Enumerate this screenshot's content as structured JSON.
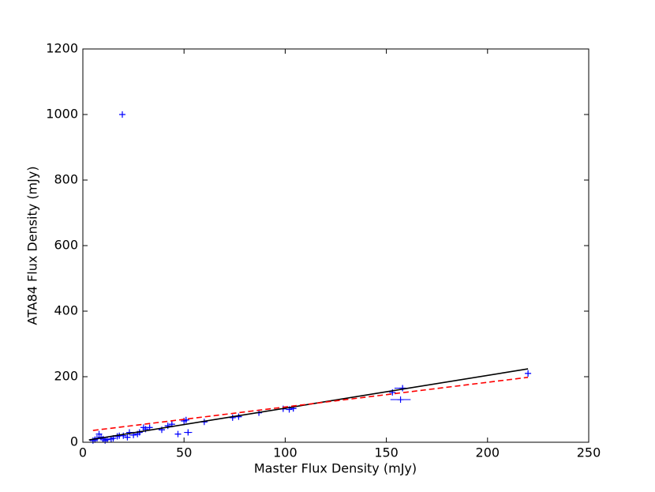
{
  "chart_data": {
    "type": "scatter",
    "xlabel": "Master Flux Density (mJy)",
    "ylabel": "ATA84 Flux Density (mJy)",
    "xlim": [
      0,
      250
    ],
    "ylim": [
      0,
      1200
    ],
    "xticks": [
      0,
      50,
      100,
      150,
      200,
      250
    ],
    "yticks": [
      0,
      200,
      400,
      600,
      800,
      1000,
      1200
    ],
    "series": [
      {
        "type": "scatter",
        "color": "#0000ff",
        "x": [
          19.5,
          220,
          157,
          158,
          153,
          104,
          99,
          102,
          87,
          77,
          74,
          60,
          51,
          50,
          52,
          47,
          44,
          42,
          39,
          33,
          31,
          30,
          28,
          27,
          25,
          23,
          22,
          20,
          18,
          17,
          15,
          14,
          12,
          10,
          8,
          9,
          7,
          6,
          5,
          11
        ],
        "values": [
          1000,
          210,
          130,
          165,
          152,
          103,
          102,
          100,
          90,
          78,
          75,
          62,
          68,
          65,
          30,
          25,
          55,
          50,
          38,
          45,
          40,
          45,
          30,
          25,
          22,
          30,
          15,
          20,
          20,
          18,
          12,
          10,
          8,
          10,
          25,
          15,
          12,
          8,
          5,
          5
        ],
        "xerr": [
          1.5,
          1.5,
          5,
          4,
          1.5,
          1.5,
          1.5,
          1.5,
          1.5,
          1.5,
          1.5,
          1.5,
          1.5,
          1.5,
          2,
          1.5,
          1.5,
          1.5,
          1.5,
          1.5,
          1.5,
          1.5,
          1.5,
          1.5,
          1.5,
          1.5,
          1.5,
          1.5,
          1.5,
          1.5,
          1.5,
          1.5,
          1.5,
          1.5,
          1.5,
          1.5,
          1.5,
          1.5,
          1.5,
          1.5
        ],
        "yerr": [
          10,
          10,
          5,
          8,
          5,
          8,
          5,
          8,
          5,
          8,
          5,
          5,
          8,
          5,
          5,
          5,
          8,
          5,
          5,
          8,
          5,
          5,
          8,
          5,
          5,
          8,
          5,
          5,
          8,
          5,
          5,
          8,
          5,
          5,
          8,
          5,
          5,
          8,
          5,
          5
        ]
      },
      {
        "type": "line",
        "color": "#000000",
        "linestyle": "solid",
        "x": [
          3,
          220
        ],
        "values": [
          7,
          224
        ]
      },
      {
        "type": "line",
        "color": "#ff0000",
        "linestyle": "dashed",
        "x": [
          5,
          220
        ],
        "values": [
          36,
          198
        ]
      }
    ]
  }
}
